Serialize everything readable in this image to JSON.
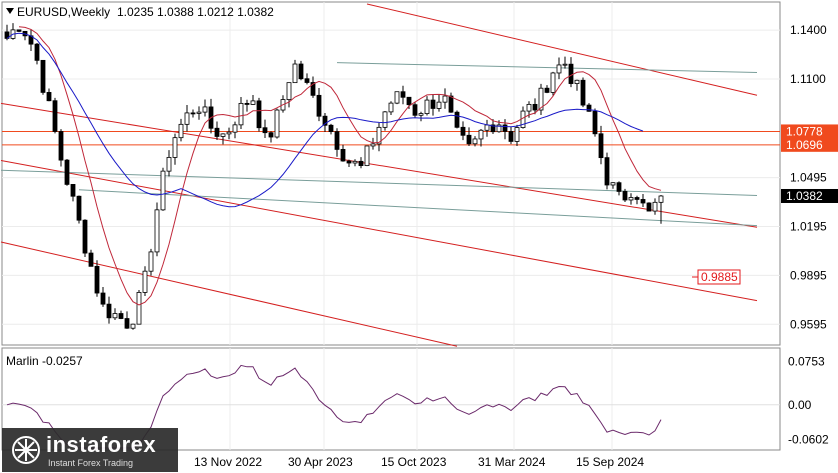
{
  "header": {
    "title": "EURUSD,Weekly",
    "ohlc": "1.0235 1.0388 1.0212 1.0382"
  },
  "indicator": {
    "label": "Marlin -0.0257"
  },
  "price_axis": {
    "ticks": [
      "1.1400",
      "1.1100",
      "1.0495",
      "1.0195",
      "0.9895",
      "0.9595"
    ],
    "highlights": [
      {
        "label": "1.0778",
        "bg": "#f04a1e",
        "fg": "#ffffff"
      },
      {
        "label": "1.0696",
        "bg": "#f04a1e",
        "fg": "#ffffff"
      },
      {
        "label": "1.0382",
        "bg": "#000000",
        "fg": "#ffffff"
      }
    ],
    "level_box": {
      "label": "0.9885",
      "color": "#e31a1c"
    }
  },
  "indicator_axis": {
    "ticks": [
      "0.0753",
      "0.00",
      "-0.0602"
    ]
  },
  "time_axis": {
    "ticks": [
      "13 Nov 2022",
      "30 Apr 2023",
      "15 Oct 2023",
      "31 Mar 2024",
      "15 Sep 2024"
    ]
  },
  "watermark": {
    "name": "instaforex",
    "tagline": "Instant Forex Trading"
  },
  "colors": {
    "bull": "#ffffff",
    "bear": "#000000",
    "ma_long": "#1a1ac8",
    "ma_short": "#c0283a",
    "channel": "#d42020",
    "support": "#7a9e9a",
    "marlin": "#6b2a6b",
    "level": "#f04a1e"
  },
  "chart_data": {
    "type": "candlestick",
    "symbol": "EURUSD",
    "timeframe": "Weekly",
    "last": {
      "open": 1.0235,
      "high": 1.0388,
      "low": 1.0212,
      "close": 1.0382
    },
    "ylim": [
      0.948,
      1.156
    ],
    "horizontal_levels": [
      1.0778,
      1.0696
    ],
    "level_marker": 0.9885,
    "x_ticks": [
      "13 Nov 2022",
      "30 Apr 2023",
      "15 Oct 2023",
      "31 Mar 2024",
      "15 Sep 2024"
    ],
    "y_ticks": [
      1.14,
      1.11,
      1.0495,
      1.0195,
      0.9895,
      0.9595
    ],
    "anchors": [
      1.135,
      1.145,
      1.128,
      1.095,
      1.06,
      1.03,
      1.0,
      0.97,
      0.965,
      0.96,
      0.98,
      1.03,
      1.07,
      1.085,
      1.095,
      1.08,
      1.075,
      1.09,
      1.1,
      1.07,
      1.09,
      1.12,
      1.105,
      1.09,
      1.075,
      1.06,
      1.055,
      1.075,
      1.095,
      1.1,
      1.09,
      1.095,
      1.1,
      1.075,
      1.065,
      1.08,
      1.085,
      1.075,
      1.09,
      1.095,
      1.115,
      1.12,
      1.1,
      1.08,
      1.05,
      1.035,
      1.045,
      1.025,
      1.0382
    ],
    "indicator": {
      "name": "Marlin",
      "value": -0.0257,
      "ylim": [
        -0.075,
        0.095
      ],
      "ticks": [
        0.0753,
        0.0,
        -0.0602
      ]
    }
  }
}
